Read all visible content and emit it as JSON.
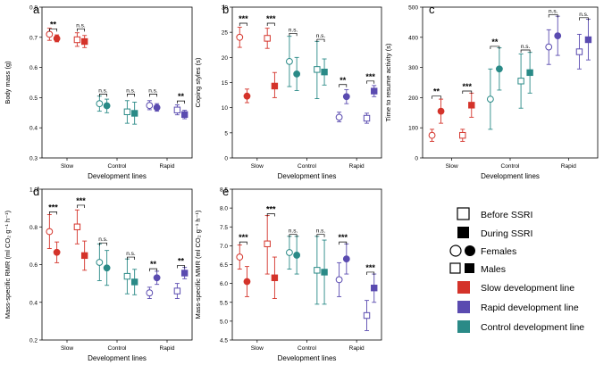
{
  "colors": {
    "Slow": "#d4332a",
    "Control": "#2a8a87",
    "Rapid": "#5a4bb0"
  },
  "groups": [
    "Slow",
    "Control",
    "Rapid"
  ],
  "chart_data": [
    {
      "type": "scatter",
      "panel": "a",
      "xlabel": "Development lines",
      "ylabel": "Body mass (g)",
      "ylim": [
        0.3,
        0.8
      ],
      "yticks": [
        "0.3",
        "0.4",
        "0.5",
        "0.6",
        "0.7",
        "0.8"
      ],
      "points": [
        {
          "group": "Slow",
          "sex": "F",
          "phase": "Before",
          "mean": 0.71,
          "lo": 0.69,
          "hi": 0.73
        },
        {
          "group": "Slow",
          "sex": "F",
          "phase": "During",
          "mean": 0.696,
          "lo": 0.685,
          "hi": 0.708
        },
        {
          "group": "Slow",
          "sex": "M",
          "phase": "Before",
          "mean": 0.692,
          "lo": 0.67,
          "hi": 0.715
        },
        {
          "group": "Slow",
          "sex": "M",
          "phase": "During",
          "mean": 0.686,
          "lo": 0.666,
          "hi": 0.706
        },
        {
          "group": "Control",
          "sex": "F",
          "phase": "Before",
          "mean": 0.48,
          "lo": 0.455,
          "hi": 0.505
        },
        {
          "group": "Control",
          "sex": "F",
          "phase": "During",
          "mean": 0.473,
          "lo": 0.45,
          "hi": 0.495
        },
        {
          "group": "Control",
          "sex": "M",
          "phase": "Before",
          "mean": 0.453,
          "lo": 0.415,
          "hi": 0.49
        },
        {
          "group": "Control",
          "sex": "M",
          "phase": "During",
          "mean": 0.448,
          "lo": 0.412,
          "hi": 0.485
        },
        {
          "group": "Rapid",
          "sex": "F",
          "phase": "Before",
          "mean": 0.474,
          "lo": 0.46,
          "hi": 0.49
        },
        {
          "group": "Rapid",
          "sex": "F",
          "phase": "During",
          "mean": 0.467,
          "lo": 0.455,
          "hi": 0.48
        },
        {
          "group": "Rapid",
          "sex": "M",
          "phase": "Before",
          "mean": 0.459,
          "lo": 0.443,
          "hi": 0.476
        },
        {
          "group": "Rapid",
          "sex": "M",
          "phase": "During",
          "mean": 0.444,
          "lo": 0.43,
          "hi": 0.458
        }
      ],
      "annotations": [
        {
          "group": "Slow",
          "sex": "F",
          "label": "**",
          "y": 0.728
        },
        {
          "group": "Slow",
          "sex": "M",
          "label": "n.s.",
          "y": 0.728
        },
        {
          "group": "Control",
          "sex": "F",
          "label": "n.s.",
          "y": 0.512
        },
        {
          "group": "Control",
          "sex": "M",
          "label": "n.s.",
          "y": 0.512
        },
        {
          "group": "Rapid",
          "sex": "F",
          "label": "n.s.",
          "y": 0.512
        },
        {
          "group": "Rapid",
          "sex": "M",
          "label": "**",
          "y": 0.489
        }
      ]
    },
    {
      "type": "scatter",
      "panel": "b",
      "xlabel": "Development lines",
      "ylabel": "Coping styles (s)",
      "ylim": [
        0,
        30
      ],
      "yticks": [
        "0",
        "5",
        "10",
        "15",
        "20",
        "25",
        "30"
      ],
      "points": [
        {
          "group": "Slow",
          "sex": "F",
          "phase": "Before",
          "mean": 24,
          "lo": 22,
          "hi": 26
        },
        {
          "group": "Slow",
          "sex": "F",
          "phase": "During",
          "mean": 12.3,
          "lo": 11,
          "hi": 13.7
        },
        {
          "group": "Slow",
          "sex": "M",
          "phase": "Before",
          "mean": 23.8,
          "lo": 21.8,
          "hi": 25.8
        },
        {
          "group": "Slow",
          "sex": "M",
          "phase": "During",
          "mean": 14.3,
          "lo": 12,
          "hi": 17
        },
        {
          "group": "Control",
          "sex": "F",
          "phase": "Before",
          "mean": 19.2,
          "lo": 14.2,
          "hi": 24.2
        },
        {
          "group": "Control",
          "sex": "F",
          "phase": "During",
          "mean": 16.7,
          "lo": 13.4,
          "hi": 20
        },
        {
          "group": "Control",
          "sex": "M",
          "phase": "Before",
          "mean": 17.6,
          "lo": 11.8,
          "hi": 23.2
        },
        {
          "group": "Control",
          "sex": "M",
          "phase": "During",
          "mean": 17.1,
          "lo": 14.5,
          "hi": 19.7
        },
        {
          "group": "Rapid",
          "sex": "F",
          "phase": "Before",
          "mean": 8.1,
          "lo": 7.2,
          "hi": 9.1
        },
        {
          "group": "Rapid",
          "sex": "F",
          "phase": "During",
          "mean": 12.2,
          "lo": 10.8,
          "hi": 13.6
        },
        {
          "group": "Rapid",
          "sex": "M",
          "phase": "Before",
          "mean": 7.9,
          "lo": 6.9,
          "hi": 8.9
        },
        {
          "group": "Rapid",
          "sex": "M",
          "phase": "During",
          "mean": 13.3,
          "lo": 12.2,
          "hi": 14.4
        }
      ],
      "annotations": [
        {
          "group": "Slow",
          "sex": "F",
          "label": "***",
          "y": 26.8
        },
        {
          "group": "Slow",
          "sex": "M",
          "label": "***",
          "y": 26.8
        },
        {
          "group": "Control",
          "sex": "F",
          "label": "n.s.",
          "y": 24.8
        },
        {
          "group": "Control",
          "sex": "M",
          "label": "n.s.",
          "y": 23.6
        },
        {
          "group": "Rapid",
          "sex": "F",
          "label": "**",
          "y": 14.6
        },
        {
          "group": "Rapid",
          "sex": "M",
          "label": "***",
          "y": 15.3
        }
      ]
    },
    {
      "type": "scatter",
      "panel": "c",
      "xlabel": "Development lines",
      "ylabel": "Time to resume activity (s)",
      "ylim": [
        0,
        500
      ],
      "yticks": [
        "0",
        "100",
        "200",
        "300",
        "400",
        "500"
      ],
      "points": [
        {
          "group": "Slow",
          "sex": "F",
          "phase": "Before",
          "mean": 75,
          "lo": 55,
          "hi": 95
        },
        {
          "group": "Slow",
          "sex": "F",
          "phase": "During",
          "mean": 155,
          "lo": 115,
          "hi": 195
        },
        {
          "group": "Slow",
          "sex": "M",
          "phase": "Before",
          "mean": 75,
          "lo": 55,
          "hi": 95
        },
        {
          "group": "Slow",
          "sex": "M",
          "phase": "During",
          "mean": 175,
          "lo": 135,
          "hi": 215
        },
        {
          "group": "Control",
          "sex": "F",
          "phase": "Before",
          "mean": 195,
          "lo": 95,
          "hi": 295
        },
        {
          "group": "Control",
          "sex": "F",
          "phase": "During",
          "mean": 295,
          "lo": 225,
          "hi": 365
        },
        {
          "group": "Control",
          "sex": "M",
          "phase": "Before",
          "mean": 255,
          "lo": 165,
          "hi": 345
        },
        {
          "group": "Control",
          "sex": "M",
          "phase": "During",
          "mean": 283,
          "lo": 215,
          "hi": 350
        },
        {
          "group": "Rapid",
          "sex": "F",
          "phase": "Before",
          "mean": 368,
          "lo": 310,
          "hi": 425
        },
        {
          "group": "Rapid",
          "sex": "F",
          "phase": "During",
          "mean": 405,
          "lo": 340,
          "hi": 470
        },
        {
          "group": "Rapid",
          "sex": "M",
          "phase": "Before",
          "mean": 352,
          "lo": 295,
          "hi": 410
        },
        {
          "group": "Rapid",
          "sex": "M",
          "phase": "During",
          "mean": 392,
          "lo": 325,
          "hi": 460
        }
      ],
      "annotations": [
        {
          "group": "Slow",
          "sex": "F",
          "label": "**",
          "y": 205
        },
        {
          "group": "Slow",
          "sex": "M",
          "label": "***",
          "y": 222
        },
        {
          "group": "Control",
          "sex": "F",
          "label": "**",
          "y": 370
        },
        {
          "group": "Control",
          "sex": "M",
          "label": "n.s.",
          "y": 358
        },
        {
          "group": "Rapid",
          "sex": "F",
          "label": "n.s.",
          "y": 475
        },
        {
          "group": "Rapid",
          "sex": "M",
          "label": "n.s.",
          "y": 465
        }
      ]
    },
    {
      "type": "scatter",
      "panel": "d",
      "xlabel": "Development lines",
      "ylabel": "Mass-specific RMR (ml CO₂ g⁻¹ h⁻¹)",
      "ylim": [
        0.2,
        1.0
      ],
      "yticks": [
        "0.2",
        "0.4",
        "0.6",
        "0.8",
        "1.0"
      ],
      "points": [
        {
          "group": "Slow",
          "sex": "F",
          "phase": "Before",
          "mean": 0.775,
          "lo": 0.685,
          "hi": 0.865
        },
        {
          "group": "Slow",
          "sex": "F",
          "phase": "During",
          "mean": 0.665,
          "lo": 0.61,
          "hi": 0.72
        },
        {
          "group": "Slow",
          "sex": "M",
          "phase": "Before",
          "mean": 0.8,
          "lo": 0.71,
          "hi": 0.89
        },
        {
          "group": "Slow",
          "sex": "M",
          "phase": "During",
          "mean": 0.648,
          "lo": 0.57,
          "hi": 0.725
        },
        {
          "group": "Control",
          "sex": "F",
          "phase": "Before",
          "mean": 0.612,
          "lo": 0.515,
          "hi": 0.71
        },
        {
          "group": "Control",
          "sex": "F",
          "phase": "During",
          "mean": 0.582,
          "lo": 0.49,
          "hi": 0.675
        },
        {
          "group": "Control",
          "sex": "M",
          "phase": "Before",
          "mean": 0.538,
          "lo": 0.445,
          "hi": 0.63
        },
        {
          "group": "Control",
          "sex": "M",
          "phase": "During",
          "mean": 0.508,
          "lo": 0.44,
          "hi": 0.575
        },
        {
          "group": "Rapid",
          "sex": "F",
          "phase": "Before",
          "mean": 0.45,
          "lo": 0.42,
          "hi": 0.48
        },
        {
          "group": "Rapid",
          "sex": "F",
          "phase": "During",
          "mean": 0.53,
          "lo": 0.495,
          "hi": 0.565
        },
        {
          "group": "Rapid",
          "sex": "M",
          "phase": "Before",
          "mean": 0.46,
          "lo": 0.42,
          "hi": 0.5
        },
        {
          "group": "Rapid",
          "sex": "M",
          "phase": "During",
          "mean": 0.555,
          "lo": 0.525,
          "hi": 0.585
        }
      ],
      "annotations": [
        {
          "group": "Slow",
          "sex": "F",
          "label": "***",
          "y": 0.88
        },
        {
          "group": "Slow",
          "sex": "M",
          "label": "***",
          "y": 0.915
        },
        {
          "group": "Control",
          "sex": "F",
          "label": "n.s.",
          "y": 0.715
        },
        {
          "group": "Control",
          "sex": "M",
          "label": "n.s.",
          "y": 0.64
        },
        {
          "group": "Rapid",
          "sex": "F",
          "label": "**",
          "y": 0.578
        },
        {
          "group": "Rapid",
          "sex": "M",
          "label": "**",
          "y": 0.595
        }
      ]
    },
    {
      "type": "scatter",
      "panel": "e",
      "xlabel": "Development lines",
      "ylabel": "Mass-specific MMR (ml CO₂ g⁻¹ h⁻¹)",
      "ylim": [
        4.5,
        8.5
      ],
      "yticks": [
        "4.5",
        "5.0",
        "5.5",
        "6.0",
        "6.5",
        "7.0",
        "7.5",
        "8.0",
        "8.5"
      ],
      "points": [
        {
          "group": "Slow",
          "sex": "F",
          "phase": "Before",
          "mean": 6.7,
          "lo": 6.38,
          "hi": 7.02
        },
        {
          "group": "Slow",
          "sex": "F",
          "phase": "During",
          "mean": 6.05,
          "lo": 5.65,
          "hi": 6.45
        },
        {
          "group": "Slow",
          "sex": "M",
          "phase": "Before",
          "mean": 7.05,
          "lo": 6.25,
          "hi": 7.8
        },
        {
          "group": "Slow",
          "sex": "M",
          "phase": "During",
          "mean": 6.15,
          "lo": 5.6,
          "hi": 6.7
        },
        {
          "group": "Control",
          "sex": "F",
          "phase": "Before",
          "mean": 6.82,
          "lo": 6.38,
          "hi": 7.25
        },
        {
          "group": "Control",
          "sex": "F",
          "phase": "During",
          "mean": 6.75,
          "lo": 6.25,
          "hi": 7.25
        },
        {
          "group": "Control",
          "sex": "M",
          "phase": "Before",
          "mean": 6.35,
          "lo": 5.45,
          "hi": 7.25
        },
        {
          "group": "Control",
          "sex": "M",
          "phase": "During",
          "mean": 6.3,
          "lo": 5.45,
          "hi": 7.15
        },
        {
          "group": "Rapid",
          "sex": "F",
          "phase": "Before",
          "mean": 6.1,
          "lo": 5.65,
          "hi": 6.55
        },
        {
          "group": "Rapid",
          "sex": "F",
          "phase": "During",
          "mean": 6.65,
          "lo": 6.25,
          "hi": 7.05
        },
        {
          "group": "Rapid",
          "sex": "M",
          "phase": "Before",
          "mean": 5.15,
          "lo": 4.75,
          "hi": 5.55
        },
        {
          "group": "Rapid",
          "sex": "M",
          "phase": "During",
          "mean": 5.88,
          "lo": 5.5,
          "hi": 6.25
        }
      ],
      "annotations": [
        {
          "group": "Slow",
          "sex": "F",
          "label": "***",
          "y": 7.1
        },
        {
          "group": "Slow",
          "sex": "M",
          "label": "***",
          "y": 7.85
        },
        {
          "group": "Control",
          "sex": "F",
          "label": "n.s.",
          "y": 7.3
        },
        {
          "group": "Control",
          "sex": "M",
          "label": "n.s.",
          "y": 7.3
        },
        {
          "group": "Rapid",
          "sex": "F",
          "label": "***",
          "y": 7.1
        },
        {
          "group": "Rapid",
          "sex": "M",
          "label": "***",
          "y": 6.3
        }
      ]
    }
  ],
  "legend": {
    "before": "Before SSRI",
    "during": "During SSRI",
    "females": "Females",
    "males": "Males",
    "slow": "Slow development line",
    "rapid": "Rapid development line",
    "control": "Control development line"
  }
}
